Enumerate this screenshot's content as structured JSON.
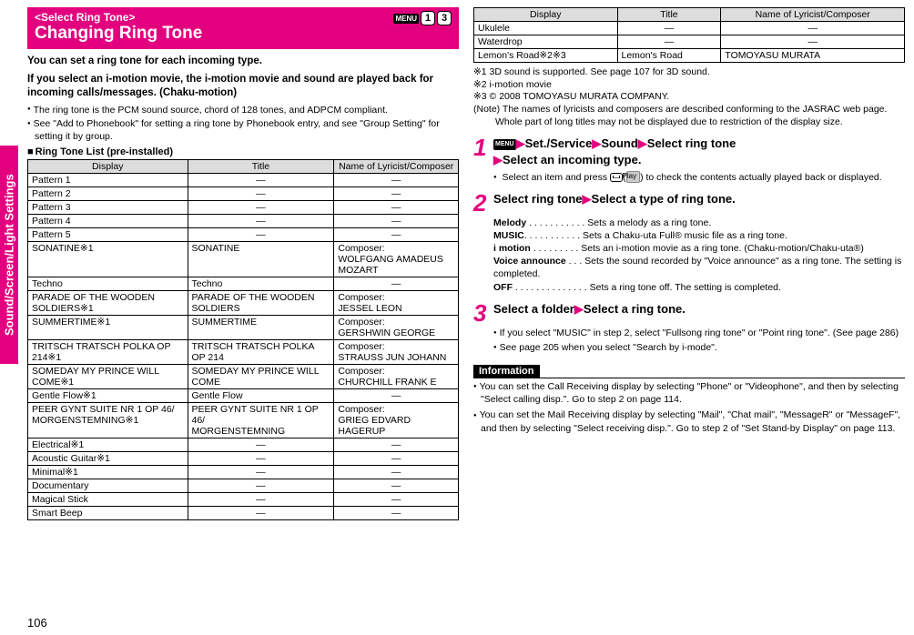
{
  "sideTab": "Sound/Screen/Light Settings",
  "pageNumber": "106",
  "header": {
    "breadcrumb": "<Select Ring Tone>",
    "title": "Changing Ring Tone",
    "menuLabel": "MENU",
    "code1": "1",
    "code2": "3"
  },
  "intro": {
    "l1": "You can set a ring tone for each incoming type.",
    "l2": "If you select an i-motion movie, the i-motion movie and sound are played back for incoming calls/messages. (Chaku-motion)"
  },
  "introBullets": [
    "The ring tone is the PCM sound source, chord of 128 tones, and ADPCM compliant.",
    "See \"Add to Phonebook\" for setting a ring tone by Phonebook entry, and see \"Group Setting\" for setting it by group."
  ],
  "tableHead": "Ring Tone List (pre-installed)",
  "tableCols": [
    "Display",
    "Title",
    "Name of Lyricist/Composer"
  ],
  "tableRows1": [
    [
      "Pattern 1",
      "—",
      "—"
    ],
    [
      "Pattern 2",
      "—",
      "—"
    ],
    [
      "Pattern 3",
      "—",
      "—"
    ],
    [
      "Pattern 4",
      "—",
      "—"
    ],
    [
      "Pattern 5",
      "—",
      "—"
    ],
    [
      "SONATINE※1",
      "SONATINE",
      "Composer:\nWOLFGANG AMADEUS MOZART"
    ],
    [
      "Techno",
      "Techno",
      "—"
    ],
    [
      "PARADE OF THE WOODEN SOLDIERS※1",
      "PARADE OF THE WOODEN SOLDIERS",
      "Composer:\nJESSEL LEON"
    ],
    [
      "SUMMERTIME※1",
      "SUMMERTIME",
      "Composer:\nGERSHWIN GEORGE"
    ],
    [
      "TRITSCH TRATSCH POLKA OP 214※1",
      "TRITSCH TRATSCH POLKA OP 214",
      "Composer:\nSTRAUSS JUN JOHANN"
    ],
    [
      "SOMEDAY MY PRINCE WILL COME※1",
      "SOMEDAY MY PRINCE WILL COME",
      "Composer:\nCHURCHILL FRANK E"
    ],
    [
      "Gentle Flow※1",
      "Gentle Flow",
      "—"
    ],
    [
      "PEER GYNT SUITE NR 1 OP 46/\nMORGENSTEMNING※1",
      "PEER GYNT SUITE NR 1 OP 46/\nMORGENSTEMNING",
      "Composer:\nGRIEG EDVARD HAGERUP"
    ],
    [
      "Electrical※1",
      "—",
      "—"
    ],
    [
      "Acoustic Guitar※1",
      "—",
      "—"
    ],
    [
      "Minimal※1",
      "—",
      "—"
    ],
    [
      "Documentary",
      "—",
      "—"
    ],
    [
      "Magical Stick",
      "—",
      "—"
    ],
    [
      "Smart Beep",
      "—",
      "—"
    ]
  ],
  "tableRows2": [
    [
      "Ukulele",
      "—",
      "—"
    ],
    [
      "Waterdrop",
      "—",
      "—"
    ],
    [
      "Lemon's Road※2※3",
      "Lemon's Road",
      "TOMOYASU MURATA"
    ]
  ],
  "footnotes": [
    "※1  3D sound is supported. See page 107 for 3D sound.",
    "※2  i-motion movie",
    "※3  © 2008 TOMOYASU MURATA COMPANY.",
    "(Note)  The names of lyricists and composers are described conforming to the JASRAC web page.\nWhole part of long titles may not be displayed due to restriction of the display size."
  ],
  "steps": {
    "s1": {
      "menuLabel": "MENU",
      "line": "▶Set./Service▶Sound▶Select ring tone\n▶Select an incoming type.",
      "sub": "Select an item and press",
      "playLabel": "Play",
      "sub2": " to check the contents actually played back or displayed."
    },
    "s2": {
      "line": "Select ring tone▶Select a type of ring tone.",
      "opts": [
        {
          "k": "Melody",
          "d": " . . . . . . . . . . . Sets a melody as a ring tone."
        },
        {
          "k": "MUSIC",
          "d": ". . . . . . . . . . . Sets a Chaku-uta Full® music file as a ring tone."
        },
        {
          "k": "i motion",
          "d": "  . . . . . . . . . Sets an i-motion movie as a ring tone. (Chaku-motion/Chaku-uta®)"
        },
        {
          "k": "Voice announce",
          "d": "  . . . Sets the sound recorded by \"Voice announce\" as a ring tone. The setting is completed."
        },
        {
          "k": "OFF",
          "d": " . . . . . . . . . . . . . . Sets a ring tone off. The setting is completed."
        }
      ]
    },
    "s3": {
      "line": "Select a folder▶Select a ring tone.",
      "subs": [
        "If you select \"MUSIC\" in step 2, select \"Fullsong ring tone\" or \"Point ring tone\". (See page 286)",
        "See page 205 when you select \"Search by i-mode\"."
      ]
    }
  },
  "info": {
    "head": "Information",
    "items": [
      "You can set the Call Receiving display by selecting \"Phone\" or \"Videophone\", and then by selecting \"Select calling disp.\". Go to step 2 on page 114.",
      "You can set the Mail Receiving display by selecting \"Mail\", \"Chat mail\", \"MessageR\" or \"MessageF\", and then by selecting \"Select receiving disp.\". Go to step 2 of \"Set Stand-by Display\" on page 113."
    ]
  }
}
